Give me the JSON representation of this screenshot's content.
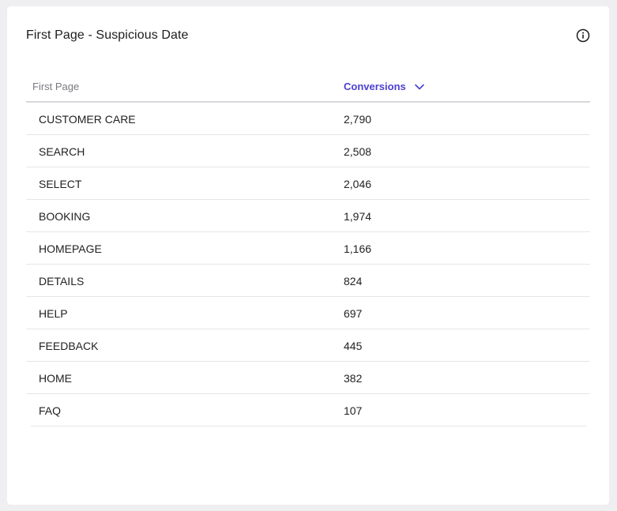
{
  "card": {
    "title": "First Page - Suspicious Date",
    "icons": {
      "info": "info-circle-icon",
      "sort": "chevron-down-icon"
    }
  },
  "table": {
    "columns": {
      "page": "First Page",
      "conversions": "Conversions"
    },
    "sort": {
      "column": "conversions",
      "direction": "descending"
    },
    "rows": [
      {
        "page": "CUSTOMER CARE",
        "conversions": "2,790"
      },
      {
        "page": "SEARCH",
        "conversions": "2,508"
      },
      {
        "page": "SELECT",
        "conversions": "2,046"
      },
      {
        "page": "BOOKING",
        "conversions": "1,974"
      },
      {
        "page": "HOMEPAGE",
        "conversions": "1,166"
      },
      {
        "page": "DETAILS",
        "conversions": "824"
      },
      {
        "page": "HELP",
        "conversions": "697"
      },
      {
        "page": "FEEDBACK",
        "conversions": "445"
      },
      {
        "page": "HOME",
        "conversions": "382"
      },
      {
        "page": "FAQ",
        "conversions": "107"
      }
    ]
  },
  "colors": {
    "accent": "#4b3fd1",
    "text": "#222226",
    "muted": "#7a7a80",
    "border": "#e6e6e9",
    "background": "#efeff1",
    "card": "#ffffff"
  }
}
